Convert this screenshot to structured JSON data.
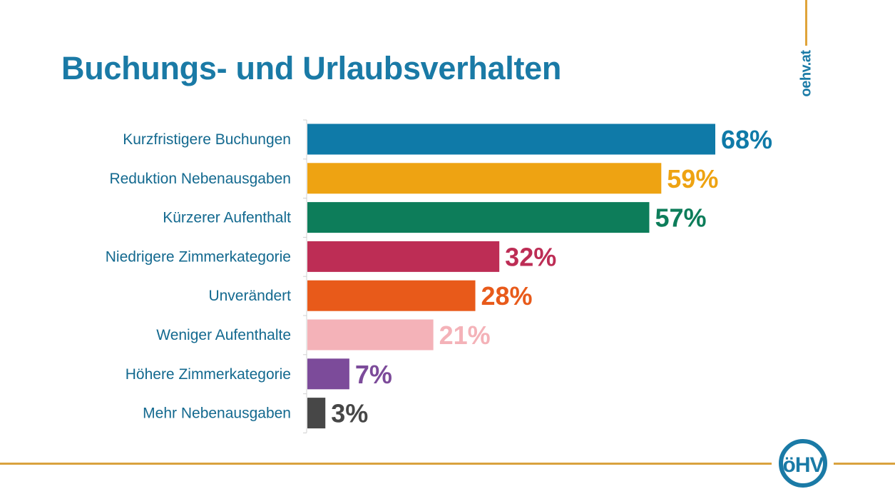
{
  "page": {
    "title": "Buchungs- und Urlaubsverhalten",
    "site": "oehv.at",
    "logo_text": "öHV",
    "logo_icon": "oehv-logo-icon",
    "colors": {
      "brand_blue": "#1a7aa6",
      "accent_gold": "#d9a23f"
    }
  },
  "chart_data": {
    "type": "bar",
    "orientation": "horizontal",
    "title": "Buchungs- und Urlaubsverhalten",
    "xlabel": "",
    "ylabel": "",
    "xlim": [
      0,
      100
    ],
    "grid": false,
    "legend": "none",
    "unit": "%",
    "categories": [
      "Kurzfristigere Buchungen",
      "Reduktion Nebenausgaben",
      "Kürzerer Aufenthalt",
      "Niedrigere Zimmerkategorie",
      "Unverändert",
      "Weniger Aufenthalte",
      "Höhere Zimmerkategorie",
      "Mehr Nebenausgaben"
    ],
    "values": [
      68,
      59,
      57,
      32,
      28,
      21,
      7,
      3
    ],
    "value_labels": [
      "68%",
      "59%",
      "57%",
      "32%",
      "28%",
      "21%",
      "7%",
      "3%"
    ],
    "colors": [
      "#0f7aa8",
      "#eea312",
      "#0d7d5a",
      "#bd2d55",
      "#e85a1a",
      "#f4b2b8",
      "#7c4b9a",
      "#474747"
    ]
  }
}
